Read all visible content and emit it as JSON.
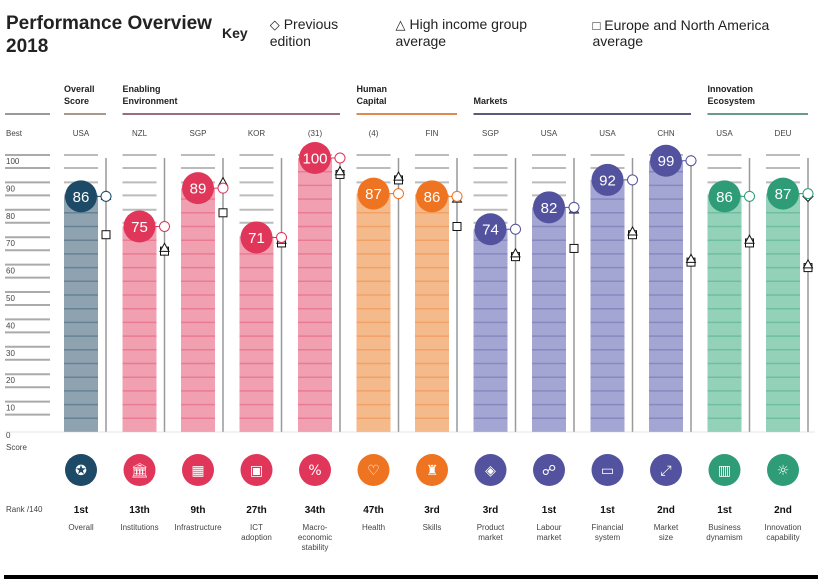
{
  "title_line1": "Performance Overview",
  "title_line2": "2018",
  "key": {
    "label": "Key",
    "items": [
      {
        "symbol": "◇",
        "label": "Previous edition"
      },
      {
        "symbol": "△",
        "label": "High income group average"
      },
      {
        "symbol": "□",
        "label": "Europe and North America average"
      }
    ]
  },
  "axis": {
    "best_label": "Best",
    "score_label": "Score",
    "rank_label": "Rank /140",
    "ticks": [
      "0",
      "10",
      "20",
      "30",
      "40",
      "50",
      "60",
      "70",
      "80",
      "90",
      "100"
    ]
  },
  "colors": {
    "overall": {
      "dark": "#1d4a66",
      "bar": "#8ea2b0",
      "line": "#a89a8a"
    },
    "enabling": {
      "dark": "#e0365a",
      "bar": "#f0a0b1",
      "line": "#9c6e7c"
    },
    "human": {
      "dark": "#ee7421",
      "bar": "#f5ba8c",
      "line": "#e08a50"
    },
    "markets": {
      "dark": "#53529f",
      "bar": "#a3a5d2",
      "line": "#5a5a7a"
    },
    "innovation": {
      "dark": "#2e9c76",
      "bar": "#93d2b8",
      "line": "#6a9a8a"
    }
  },
  "groups": [
    {
      "key": "overall",
      "label1": "Overall",
      "label2": "Score"
    },
    {
      "key": "enabling",
      "label1": "Enabling",
      "label2": "Environment"
    },
    {
      "key": "human",
      "label1": "Human",
      "label2": "Capital"
    },
    {
      "key": "markets",
      "label1": "Markets",
      "label2": ""
    },
    {
      "key": "innovation",
      "label1": "Innovation",
      "label2": "Ecosystem"
    }
  ],
  "chart_data": {
    "type": "bar",
    "ylim": [
      0,
      100
    ],
    "grid": true,
    "legend_placement": "top",
    "categories": [
      {
        "group": "overall",
        "name1": "Overall",
        "name2": "",
        "name3": "",
        "best": "USA",
        "score": 86,
        "rank": "1st",
        "icon": "award-icon",
        "previous_edition": 86,
        "high_income_avg": 86,
        "europe_na_avg": 72
      },
      {
        "group": "enabling",
        "name1": "Institutions",
        "name2": "",
        "name3": "",
        "best": "NZL",
        "score": 75,
        "rank": "13th",
        "icon": "institution-icon",
        "previous_edition": 75,
        "high_income_avg": 67,
        "europe_na_avg": 66
      },
      {
        "group": "enabling",
        "name1": "Infrastructure",
        "name2": "",
        "name3": "",
        "best": "SGP",
        "score": 89,
        "rank": "9th",
        "icon": "train-icon",
        "previous_edition": 89,
        "high_income_avg": 91,
        "europe_na_avg": 80
      },
      {
        "group": "enabling",
        "name1": "ICT",
        "name2": "adoption",
        "name3": "",
        "best": "KOR",
        "score": 71,
        "rank": "27th",
        "icon": "chip-icon",
        "previous_edition": 71,
        "high_income_avg": 70,
        "europe_na_avg": 69
      },
      {
        "group": "enabling",
        "name1": "Macro-",
        "name2": "economic",
        "name3": "stability",
        "best": "(31)",
        "score": 100,
        "rank": "34th",
        "icon": "percent-icon",
        "previous_edition": 100,
        "high_income_avg": 95,
        "europe_na_avg": 94
      },
      {
        "group": "human",
        "name1": "Health",
        "name2": "",
        "name3": "",
        "best": "(4)",
        "score": 87,
        "rank": "47th",
        "icon": "heart-pulse-icon",
        "previous_edition": 87,
        "high_income_avg": 93,
        "europe_na_avg": 92
      },
      {
        "group": "human",
        "name1": "Skills",
        "name2": "",
        "name3": "",
        "best": "FIN",
        "score": 86,
        "rank": "3rd",
        "icon": "graduate-icon",
        "previous_edition": 86,
        "high_income_avg": 85,
        "europe_na_avg": 75
      },
      {
        "group": "markets",
        "name1": "Product",
        "name2": "market",
        "name3": "",
        "best": "SGP",
        "score": 74,
        "rank": "3rd",
        "icon": "tag-icon",
        "previous_edition": 74,
        "high_income_avg": 65,
        "europe_na_avg": 64
      },
      {
        "group": "markets",
        "name1": "Labour",
        "name2": "market",
        "name3": "",
        "best": "USA",
        "score": 82,
        "rank": "1st",
        "icon": "people-icon",
        "previous_edition": 82,
        "high_income_avg": 81,
        "europe_na_avg": 67
      },
      {
        "group": "markets",
        "name1": "Financial",
        "name2": "system",
        "name3": "",
        "best": "USA",
        "score": 92,
        "rank": "1st",
        "icon": "card-icon",
        "previous_edition": 92,
        "high_income_avg": 73,
        "europe_na_avg": 72
      },
      {
        "group": "markets",
        "name1": "Market",
        "name2": "size",
        "name3": "",
        "best": "CHN",
        "score": 99,
        "rank": "2nd",
        "icon": "expand-icon",
        "previous_edition": 99,
        "high_income_avg": 63,
        "europe_na_avg": 62
      },
      {
        "group": "innovation",
        "name1": "Business",
        "name2": "dynamism",
        "name3": "",
        "best": "USA",
        "score": 86,
        "rank": "1st",
        "icon": "building-icon",
        "previous_edition": 86,
        "high_income_avg": 70,
        "europe_na_avg": 69
      },
      {
        "group": "innovation",
        "name1": "Innovation",
        "name2": "capability",
        "name3": "",
        "best": "DEU",
        "score": 87,
        "rank": "2nd",
        "icon": "lightbulb-icon",
        "previous_edition": 86,
        "high_income_avg": 61,
        "europe_na_avg": 60
      }
    ]
  }
}
